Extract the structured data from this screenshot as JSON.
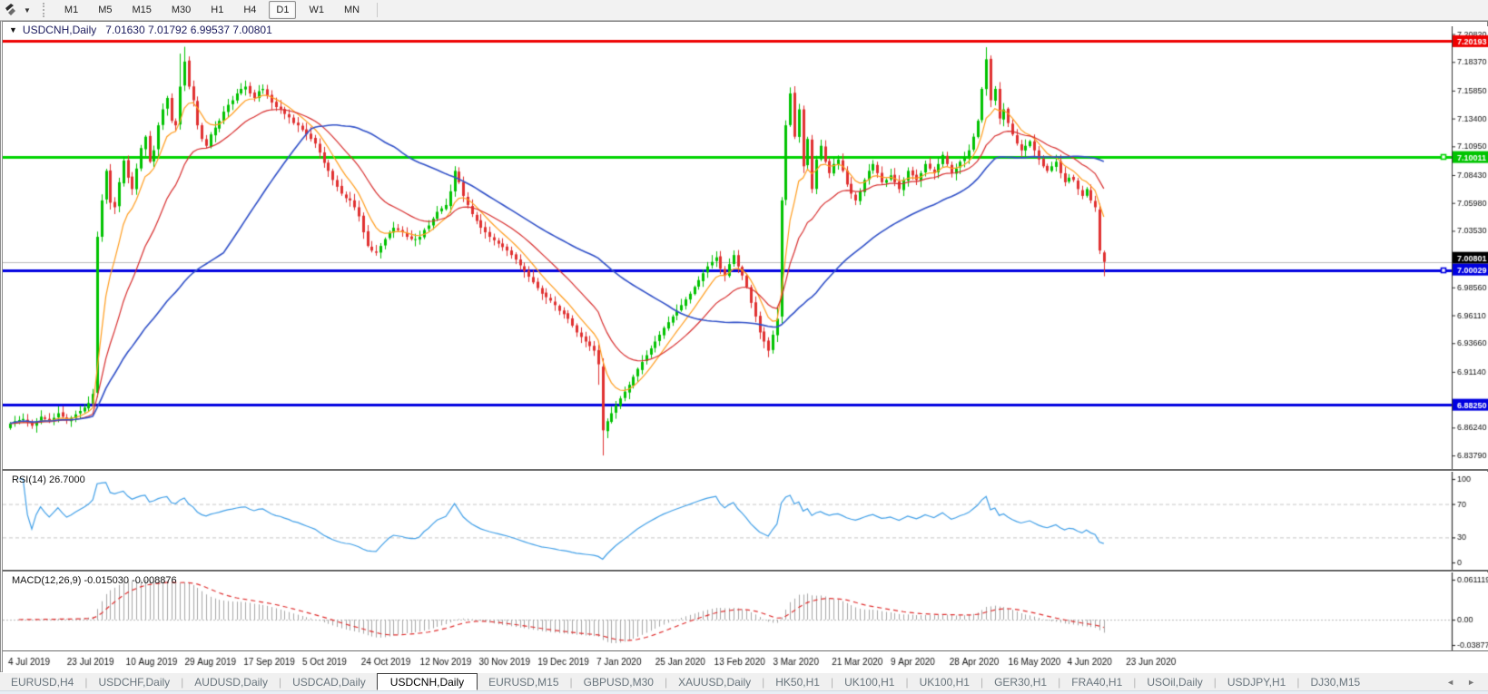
{
  "toolbar": {
    "left_icon": "draw-tools",
    "caret_glyph": "▼",
    "timeframes": [
      {
        "label": "M1",
        "active": false
      },
      {
        "label": "M5",
        "active": false
      },
      {
        "label": "M15",
        "active": false
      },
      {
        "label": "M30",
        "active": false
      },
      {
        "label": "H1",
        "active": false
      },
      {
        "label": "H4",
        "active": false
      },
      {
        "label": "D1",
        "active": true
      },
      {
        "label": "W1",
        "active": false
      },
      {
        "label": "MN",
        "active": false
      }
    ]
  },
  "chart_window": {
    "collapse_glyph": "▼",
    "caption_symbol": "USDCNH,Daily",
    "caption_ohlc": "7.01630 7.01792 6.99537 7.00801"
  },
  "rsi_panel": {
    "label": "RSI(14) 26.7000"
  },
  "macd_panel": {
    "label": "MACD(12,26,9) -0.015030 -0.008876"
  },
  "tab_bar": {
    "scroll_left": "◄",
    "scroll_right": "►",
    "items": [
      {
        "label": "EURUSD,H4",
        "active": false
      },
      {
        "label": "USDCHF,Daily",
        "active": false
      },
      {
        "label": "AUDUSD,Daily",
        "active": false
      },
      {
        "label": "USDCAD,Daily",
        "active": false
      },
      {
        "label": "USDCNH,Daily",
        "active": true
      },
      {
        "label": "EURUSD,M15",
        "active": false
      },
      {
        "label": "GBPUSD,M30",
        "active": false
      },
      {
        "label": "XAUUSD,Daily",
        "active": false
      },
      {
        "label": "HK50,H1",
        "active": false
      },
      {
        "label": "UK100,H1",
        "active": false
      },
      {
        "label": "UK100,H1",
        "active": false
      },
      {
        "label": "GER30,H1",
        "active": false
      },
      {
        "label": "FRA40,H1",
        "active": false
      },
      {
        "label": "USOil,Daily",
        "active": false
      },
      {
        "label": "USDJPY,H1",
        "active": false
      },
      {
        "label": "DJ30,M15",
        "active": false
      }
    ]
  },
  "chart_data": {
    "type": "candlestick",
    "symbol": "USDCNH",
    "timeframe": "Daily",
    "ohlc_current": {
      "open": 7.0163,
      "high": 7.01792,
      "low": 6.99537,
      "close": 7.00801
    },
    "price_axis": {
      "top": 7.215,
      "bottom": 6.826,
      "ticks": [
        "7.20820",
        "7.18370",
        "7.15850",
        "7.13400",
        "7.10950",
        "7.08430",
        "7.05980",
        "7.03530",
        "6.98560",
        "6.96110",
        "6.93660",
        "6.91140",
        "6.86240",
        "6.83790"
      ]
    },
    "badges": [
      {
        "text": "7.20193",
        "price": 7.20193,
        "bg": "#ee0000",
        "fg": "#ffffff"
      },
      {
        "text": "7.10011",
        "price": 7.10011,
        "bg": "#00c400",
        "fg": "#ffffff"
      },
      {
        "text": "7.00801",
        "price": 7.00801,
        "bg": "#000000",
        "fg": "#ffffff"
      },
      {
        "text": "7.00029",
        "price": 7.00029,
        "bg": "#0000e0",
        "fg": "#ffffff"
      },
      {
        "text": "6.88250",
        "price": 6.8825,
        "bg": "#0000e0",
        "fg": "#ffffff"
      }
    ],
    "hlines": [
      {
        "price": 7.20193,
        "color": "#ee0000",
        "w": 3,
        "handle": false
      },
      {
        "price": 7.10011,
        "color": "#00d400",
        "w": 3,
        "handle": true
      },
      {
        "price": 7.00801,
        "color": "#bcbcbc",
        "w": 1,
        "handle": false
      },
      {
        "price": 7.00029,
        "color": "#0000e0",
        "w": 3,
        "handle": true
      },
      {
        "price": 6.8825,
        "color": "#0000e0",
        "w": 3,
        "handle": false
      }
    ],
    "candles": {
      "count": 252,
      "up_color": "#00c200",
      "down_color": "#e03030",
      "closes": [
        6.866,
        6.868,
        6.869,
        6.87,
        6.867,
        6.864,
        6.868,
        6.872,
        6.87,
        6.868,
        6.871,
        6.875,
        6.872,
        6.869,
        6.871,
        6.874,
        6.877,
        6.88,
        6.884,
        6.892,
        7.03,
        7.062,
        7.088,
        7.06,
        7.056,
        7.078,
        7.097,
        7.082,
        7.072,
        7.09,
        7.108,
        7.118,
        7.096,
        7.106,
        7.128,
        7.142,
        7.152,
        7.132,
        7.128,
        7.162,
        7.184,
        7.162,
        7.15,
        7.128,
        7.116,
        7.11,
        7.12,
        7.126,
        7.132,
        7.14,
        7.146,
        7.15,
        7.156,
        7.16,
        7.162,
        7.156,
        7.152,
        7.158,
        7.16,
        7.154,
        7.148,
        7.144,
        7.142,
        7.138,
        7.135,
        7.13,
        7.128,
        7.124,
        7.12,
        7.116,
        7.112,
        7.104,
        7.095,
        7.088,
        7.08,
        7.074,
        7.068,
        7.064,
        7.062,
        7.056,
        7.048,
        7.034,
        7.022,
        7.018,
        7.016,
        7.022,
        7.028,
        7.034,
        7.038,
        7.036,
        7.034,
        7.03,
        7.028,
        7.028,
        7.03,
        7.036,
        7.04,
        7.046,
        7.052,
        7.055,
        7.058,
        7.07,
        7.088,
        7.078,
        7.066,
        7.058,
        7.05,
        7.044,
        7.038,
        7.034,
        7.03,
        7.027,
        7.024,
        7.021,
        7.018,
        7.014,
        7.01,
        7.005,
        7.0,
        6.995,
        6.99,
        6.985,
        6.98,
        6.977,
        6.974,
        6.97,
        6.965,
        6.962,
        6.958,
        6.952,
        6.946,
        6.942,
        6.938,
        6.934,
        6.93,
        6.918,
        6.86,
        6.868,
        6.875,
        6.882,
        6.888,
        6.894,
        6.9,
        6.907,
        6.914,
        6.92,
        6.926,
        6.932,
        6.938,
        6.944,
        6.95,
        6.955,
        6.96,
        6.965,
        6.97,
        6.975,
        6.98,
        6.986,
        6.992,
        6.998,
        7.004,
        7.008,
        7.012,
        7.002,
        6.996,
        7.006,
        7.014,
        7.004,
        6.996,
        6.986,
        6.972,
        6.96,
        6.946,
        6.938,
        6.93,
        6.944,
        6.958,
        7.062,
        7.128,
        7.156,
        7.118,
        7.142,
        7.092,
        7.116,
        7.072,
        7.098,
        7.11,
        7.096,
        7.086,
        7.094,
        7.098,
        7.088,
        7.076,
        7.068,
        7.062,
        7.07,
        7.08,
        7.088,
        7.094,
        7.086,
        7.078,
        7.08,
        7.084,
        7.078,
        7.072,
        7.08,
        7.088,
        7.084,
        7.08,
        7.086,
        7.094,
        7.09,
        7.086,
        7.094,
        7.102,
        7.094,
        7.086,
        7.09,
        7.096,
        7.1,
        7.106,
        7.118,
        7.132,
        7.16,
        7.186,
        7.15,
        7.16,
        7.134,
        7.142,
        7.13,
        7.12,
        7.112,
        7.106,
        7.11,
        7.114,
        7.106,
        7.098,
        7.092,
        7.088,
        7.092,
        7.096,
        7.086,
        7.078,
        7.082,
        7.08,
        7.072,
        7.066,
        7.072,
        7.062,
        7.056,
        7.018,
        7.00801
      ],
      "overrides": {
        "20": {
          "o": 6.893,
          "l": 6.889
        },
        "39": {
          "h": 7.191
        },
        "40": {
          "h": 7.197
        },
        "135": {
          "l": 6.9
        },
        "136": {
          "o": 6.916,
          "l": 6.8379
        },
        "176": {
          "h": 6.968
        },
        "177": {
          "o": 6.96,
          "l": 6.954
        },
        "224": {
          "h": 7.1966
        },
        "250": {
          "o": 7.054
        },
        "251": {
          "o": 7.0163,
          "h": 7.01792,
          "l": 6.99537,
          "c": 7.00801
        }
      }
    },
    "moving_averages": [
      {
        "type": "ema",
        "period": 8,
        "color": "#ff9d1e"
      },
      {
        "type": "ema",
        "period": 20,
        "color": "#d82e2e"
      },
      {
        "type": "sma",
        "period": 50,
        "color": "#3050c8"
      }
    ],
    "rsi": {
      "period": 14,
      "current": 26.7,
      "color": "#42a0e8",
      "levels": [
        70,
        30
      ],
      "scale": [
        "100",
        "70",
        "30",
        "0"
      ]
    },
    "macd": {
      "fast": 12,
      "slow": 26,
      "signal_period": 9,
      "current_macd": -0.01503,
      "current_signal": -0.008876,
      "hist_color": "#a6a6a6",
      "signal_color": "#e03030",
      "scale_top": "0.061119",
      "scale_zero": "0.00",
      "scale_bottom": "-0.038777",
      "max": 0.061119,
      "min": -0.038777
    },
    "date_axis": [
      "4 Jul 2019",
      "23 Jul 2019",
      "10 Aug 2019",
      "29 Aug 2019",
      "17 Sep 2019",
      "5 Oct 2019",
      "24 Oct 2019",
      "12 Nov 2019",
      "30 Nov 2019",
      "19 Dec 2019",
      "7 Jan 2020",
      "25 Jan 2020",
      "13 Feb 2020",
      "3 Mar 2020",
      "21 Mar 2020",
      "9 Apr 2020",
      "28 Apr 2020",
      "16 May 2020",
      "4 Jun 2020",
      "23 Jun 2020"
    ]
  }
}
